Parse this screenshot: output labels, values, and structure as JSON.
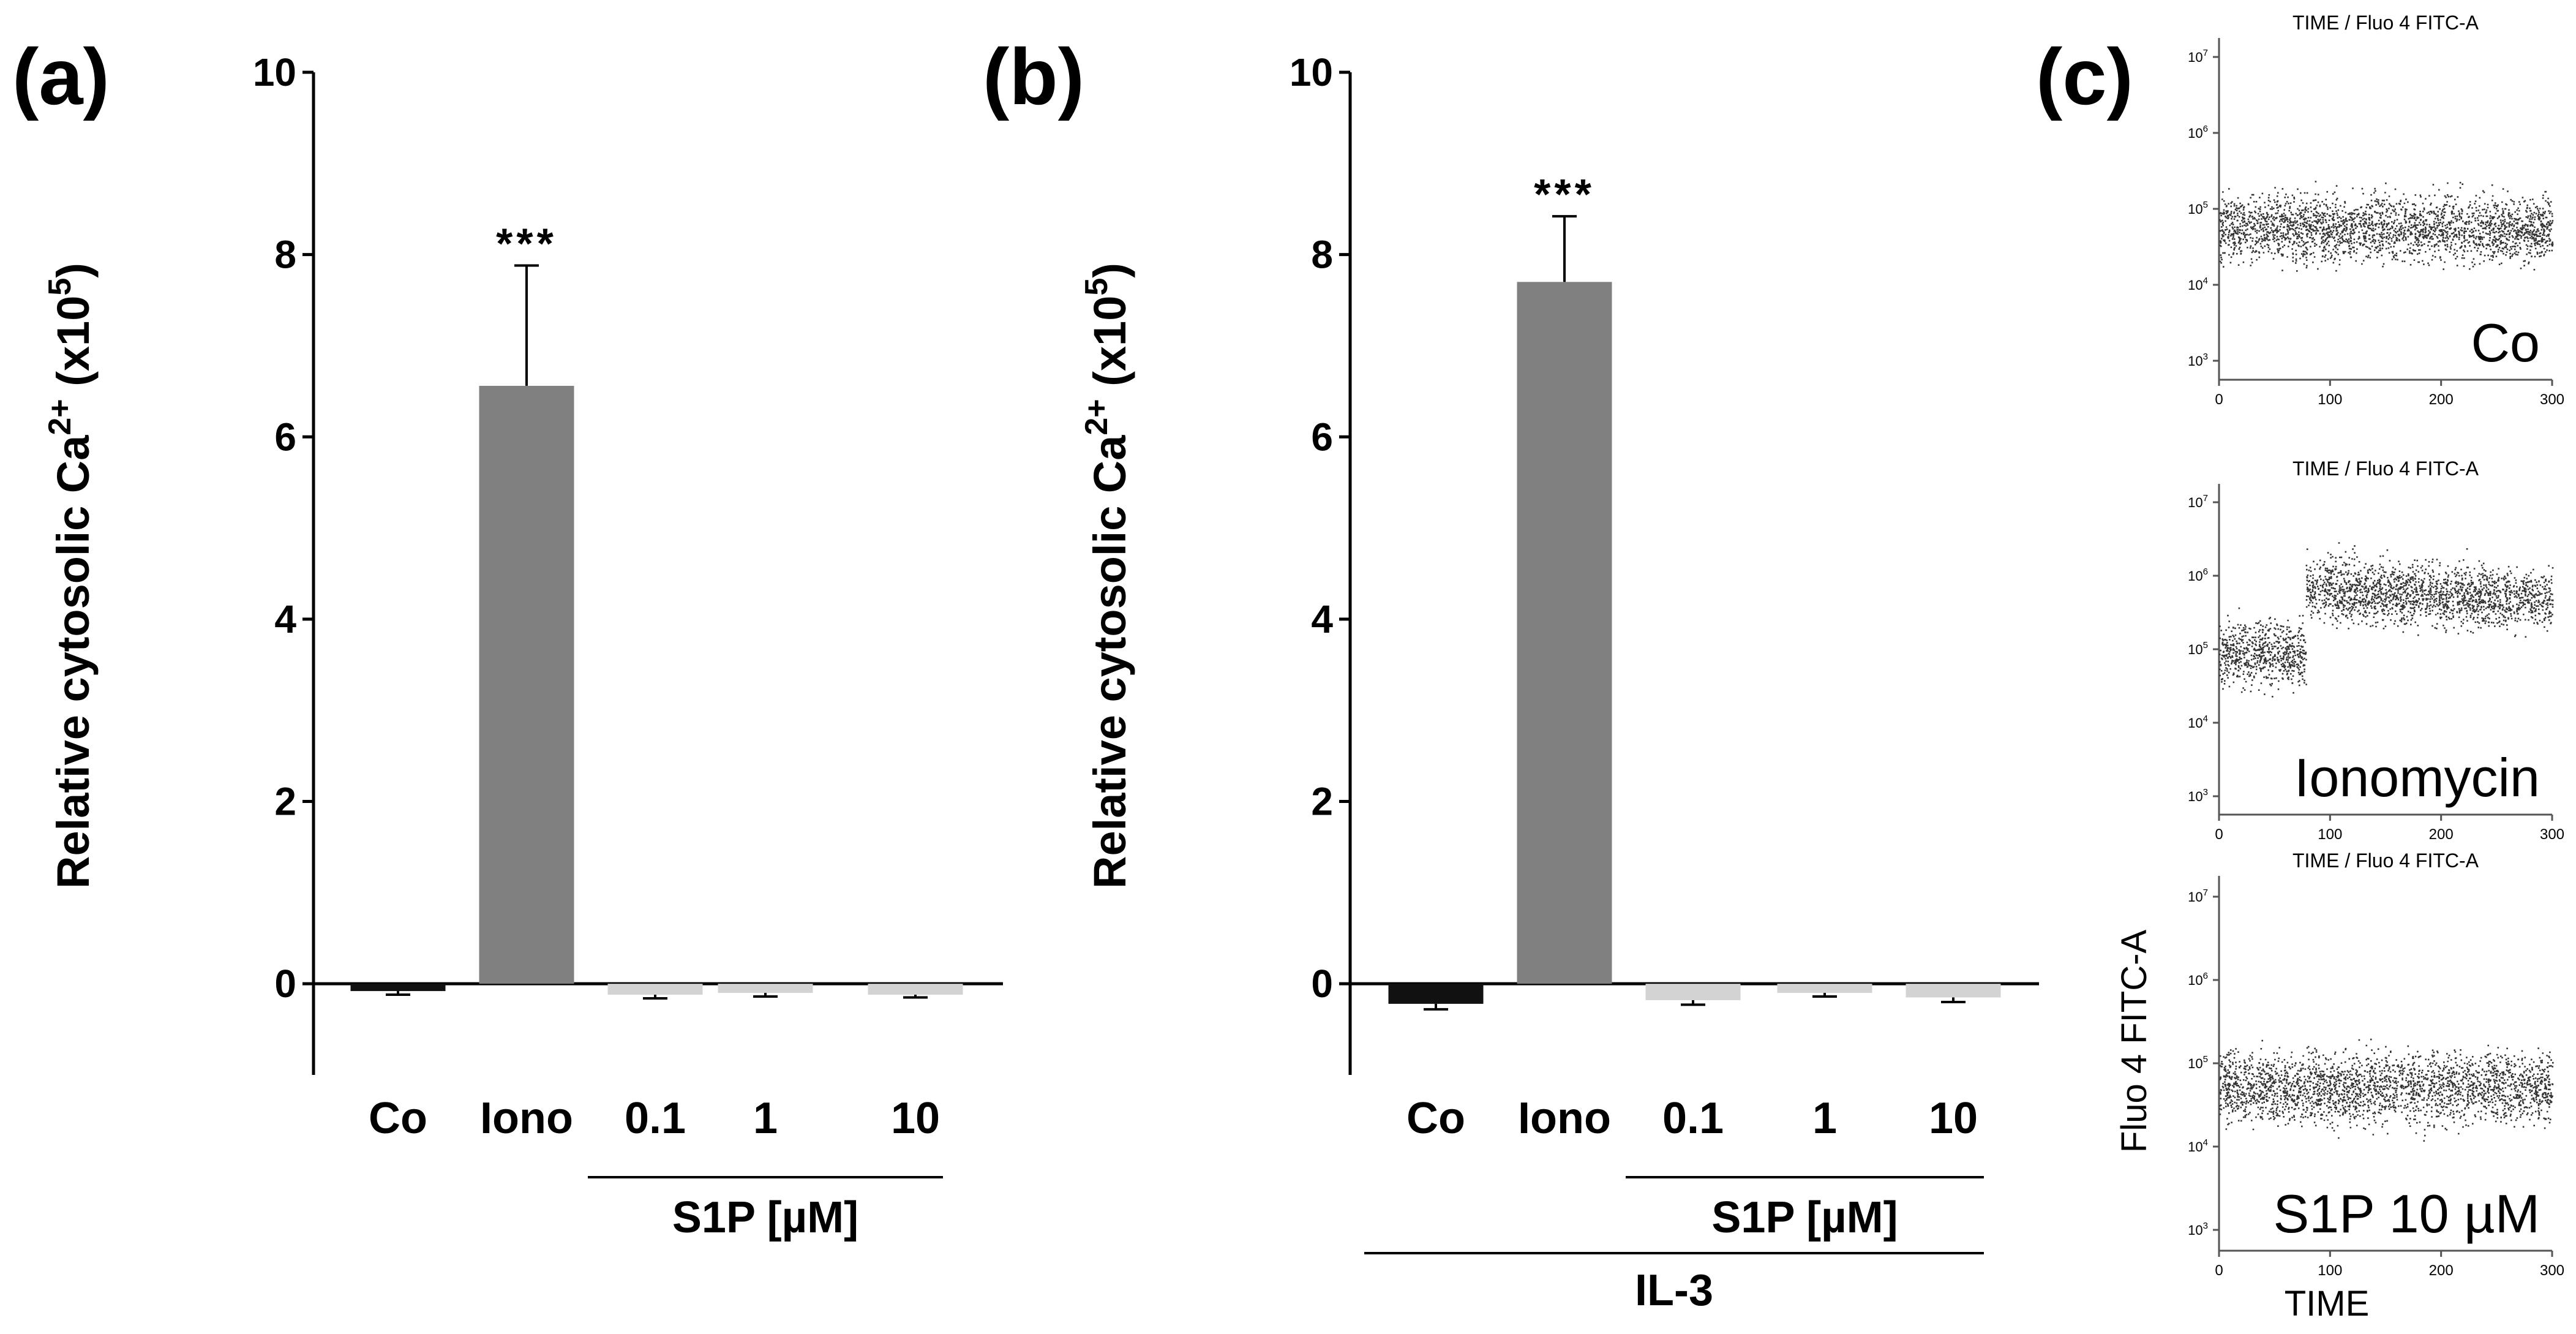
{
  "panels": {
    "a_label": "(a)",
    "b_label": "(b)",
    "c_label": "(c)"
  },
  "colors": {
    "co_bar": "#111111",
    "iono_bar": "#808080",
    "s1p_bar": "#d3d3d3",
    "dots": "#333333",
    "axis": "#000000"
  },
  "chart_data": [
    {
      "type": "bar",
      "panel": "a",
      "ylabel_main": "Relative cytosolic Ca",
      "ylabel_sup1": "2+",
      "ylabel_mid": " (x10",
      "ylabel_sup2": "5",
      "ylabel_end": ")",
      "ylim": [
        -1,
        10
      ],
      "yticks": [
        "0",
        "2",
        "4",
        "6",
        "8",
        "10"
      ],
      "categories": [
        "Co",
        "Iono",
        "0.1",
        "1",
        "10"
      ],
      "values": [
        -0.08,
        6.56,
        -0.12,
        -0.1,
        -0.12
      ],
      "errors": [
        0.04,
        1.32,
        0.04,
        0.04,
        0.03
      ],
      "significance": [
        "",
        "***",
        "",
        "",
        ""
      ],
      "group_labels": {
        "s1p": "S1P [µM]"
      }
    },
    {
      "type": "bar",
      "panel": "b",
      "ylabel_main": "Relative cytosolic Ca",
      "ylabel_sup1": "2+",
      "ylabel_mid": " (x10",
      "ylabel_sup2": "5",
      "ylabel_end": ")",
      "ylim": [
        -1,
        10
      ],
      "yticks": [
        "0",
        "2",
        "4",
        "6",
        "8",
        "10"
      ],
      "categories": [
        "Co",
        "Iono",
        "0.1",
        "1",
        "10"
      ],
      "values": [
        -0.22,
        7.7,
        -0.18,
        -0.1,
        -0.15
      ],
      "errors": [
        0.06,
        0.72,
        0.05,
        0.04,
        0.05
      ],
      "significance": [
        "",
        "***",
        "",
        "",
        ""
      ],
      "group_labels": {
        "s1p": "S1P [µM]",
        "il3": "IL-3"
      }
    },
    {
      "type": "scatter",
      "panel": "c",
      "shared_ylabel": "Fluo 4 FITC-A",
      "shared_xlabel": "TIME",
      "xlim": [
        0,
        300
      ],
      "xticks": [
        "0",
        "100",
        "200",
        "300"
      ],
      "ytick_exponents": [
        "3",
        "4",
        "5",
        "6",
        "7"
      ],
      "ytick_base": "10",
      "plots": [
        {
          "title": "TIME / Fluo 4 FITC-A",
          "label": "Co",
          "baseline_log10": 4.75,
          "shift_time": null,
          "shifted_log10": null
        },
        {
          "title": "TIME / Fluo 4 FITC-A",
          "label": "Ionomycin",
          "baseline_log10": 4.95,
          "shift_time": 78,
          "shifted_log10": 5.85
        },
        {
          "title": "TIME / Fluo 4 FITC-A",
          "label": "S1P 10 µM",
          "baseline_log10": 4.72,
          "shift_time": null,
          "shifted_log10": null
        }
      ]
    }
  ]
}
